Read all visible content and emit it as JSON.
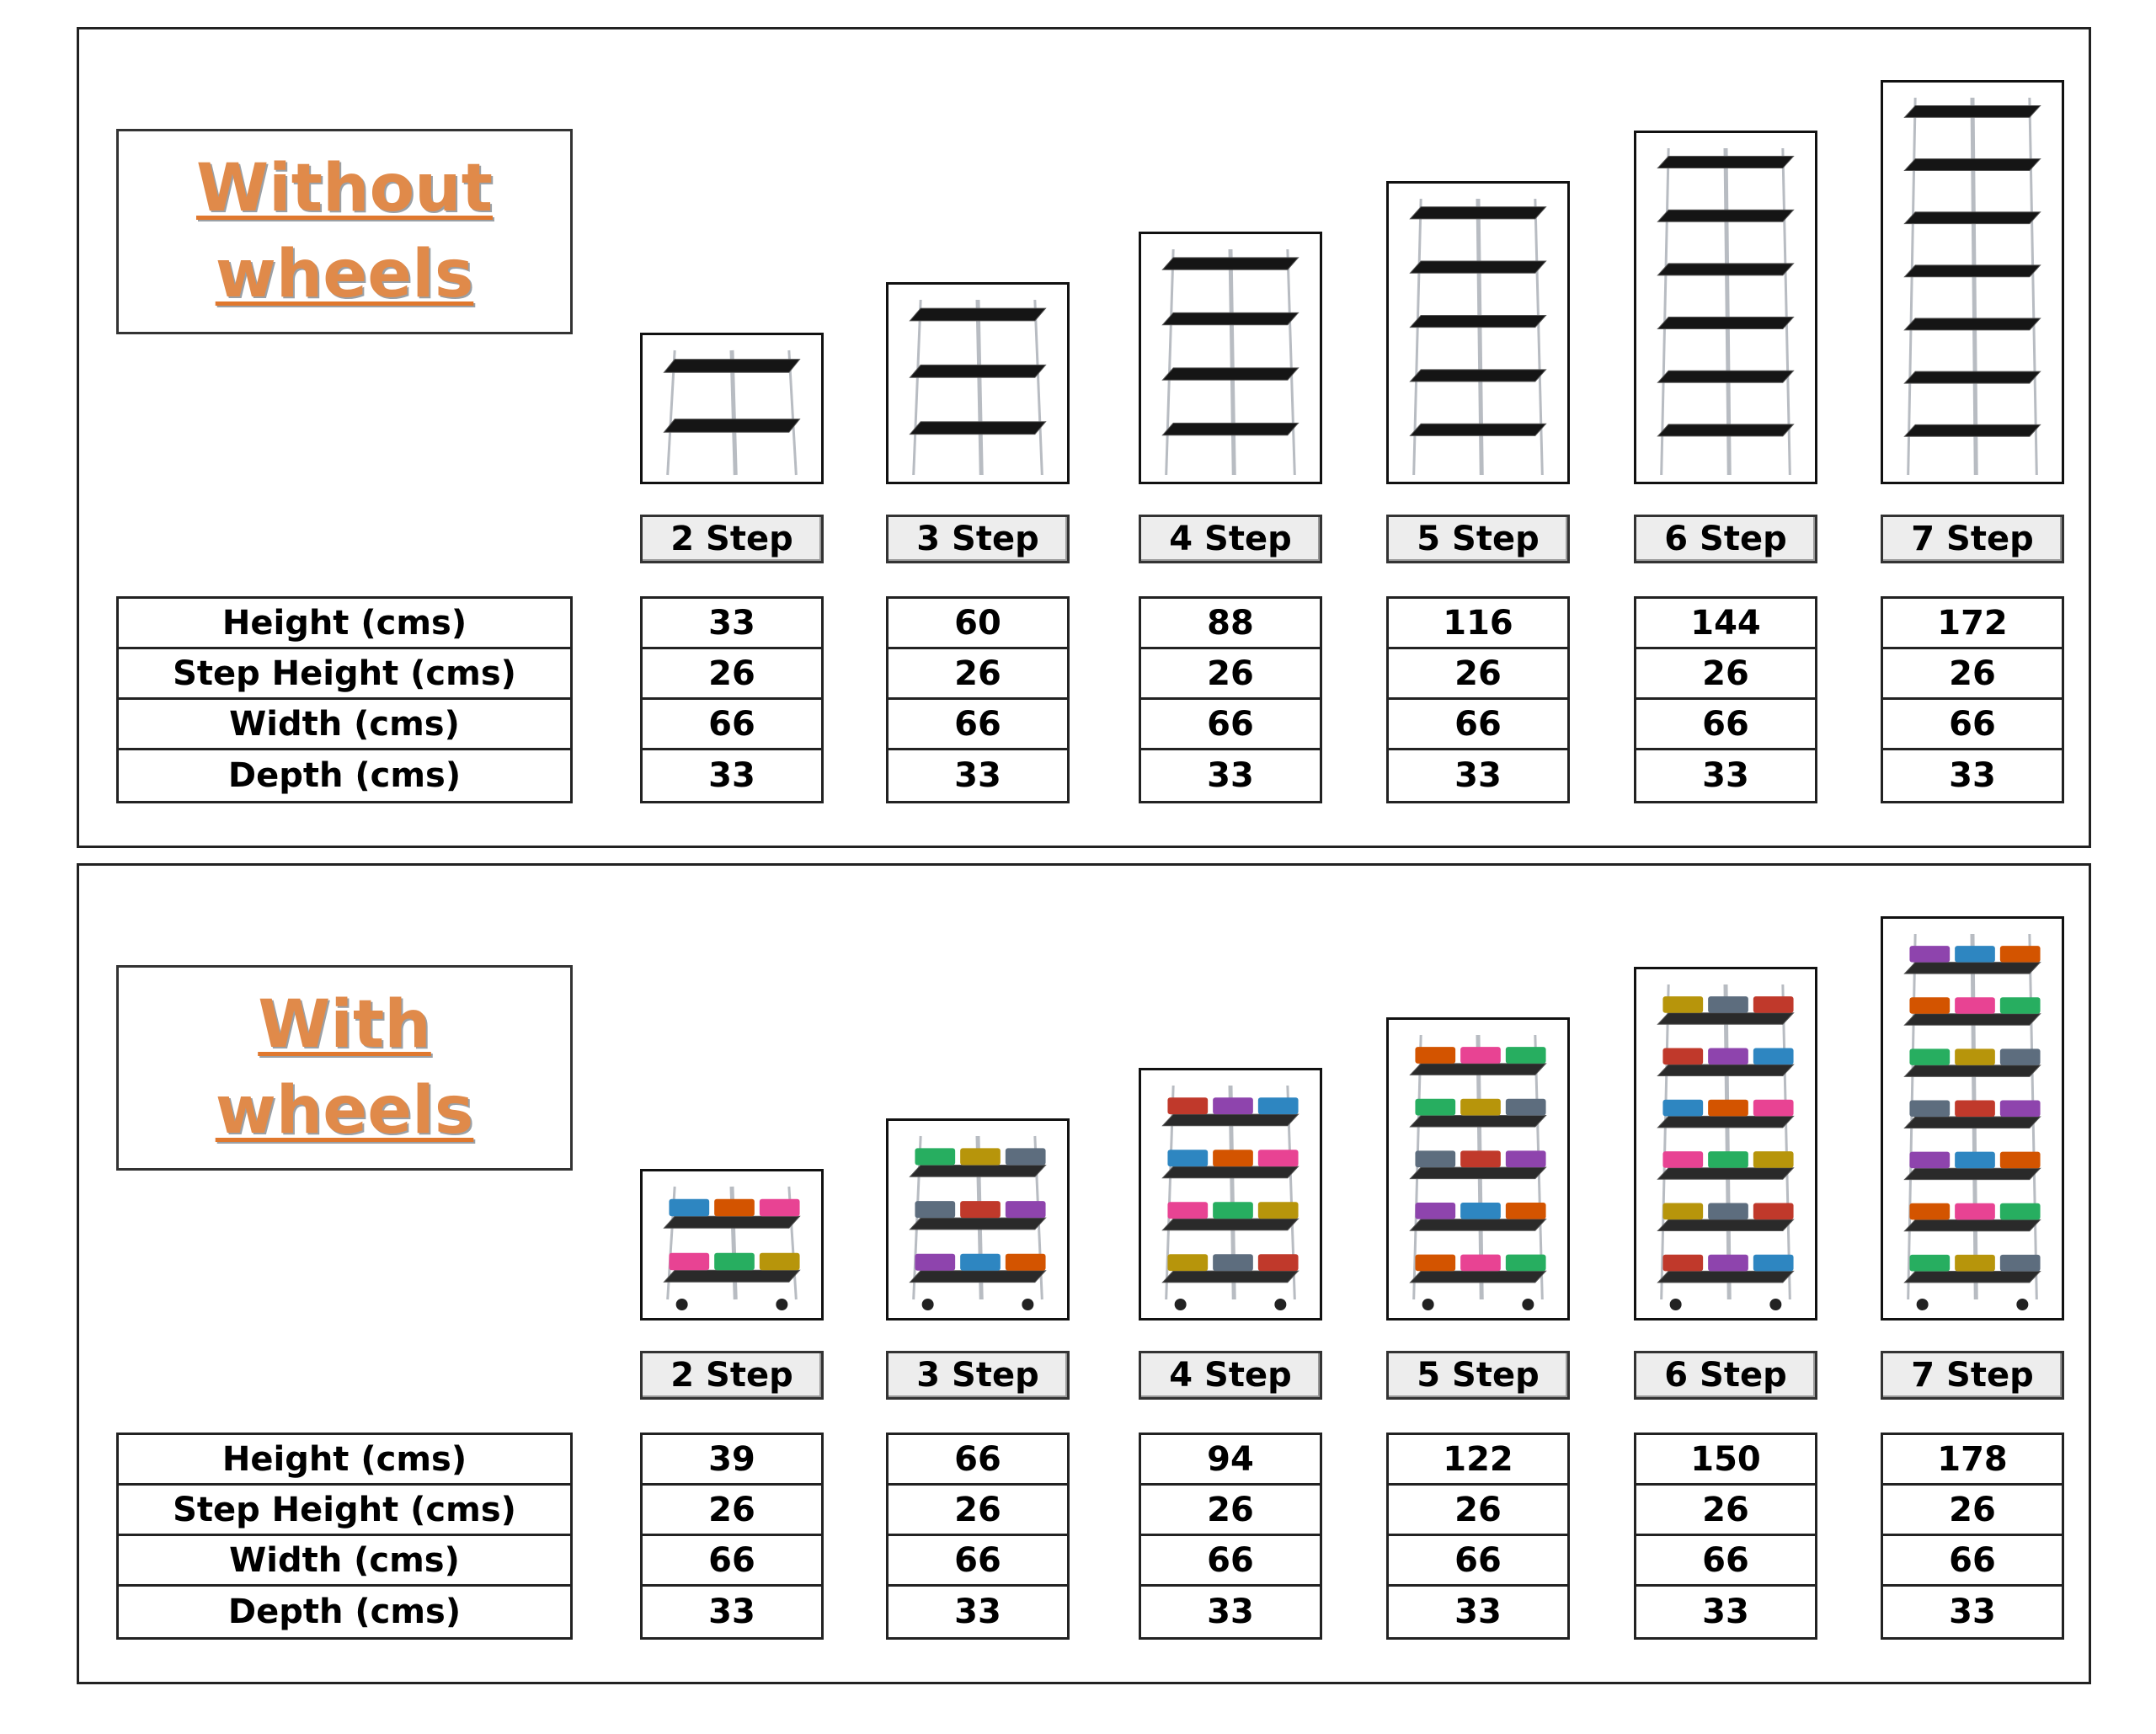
{
  "sections": [
    {
      "title_line1": "Without",
      "title_line2": "wheels",
      "row_labels": [
        "Height (cms)",
        "Step Height (cms)",
        "Width (cms)",
        "Depth (cms)"
      ],
      "items": [
        {
          "step": "2 Step",
          "height": "33",
          "step_height": "26",
          "width": "66",
          "depth": "33"
        },
        {
          "step": "3 Step",
          "height": "60",
          "step_height": "26",
          "width": "66",
          "depth": "33"
        },
        {
          "step": "4 Step",
          "height": "88",
          "step_height": "26",
          "width": "66",
          "depth": "33"
        },
        {
          "step": "5 Step",
          "height": "116",
          "step_height": "26",
          "width": "66",
          "depth": "33"
        },
        {
          "step": "6 Step",
          "height": "144",
          "step_height": "26",
          "width": "66",
          "depth": "33"
        },
        {
          "step": "7 Step",
          "height": "172",
          "step_height": "26",
          "width": "66",
          "depth": "33"
        }
      ]
    },
    {
      "title_line1": "With",
      "title_line2": "wheels",
      "row_labels": [
        "Height (cms)",
        "Step Height (cms)",
        "Width (cms)",
        "Depth (cms)"
      ],
      "items": [
        {
          "step": "2 Step",
          "height": "39",
          "step_height": "26",
          "width": "66",
          "depth": "33"
        },
        {
          "step": "3 Step",
          "height": "66",
          "step_height": "26",
          "width": "66",
          "depth": "33"
        },
        {
          "step": "4 Step",
          "height": "94",
          "step_height": "26",
          "width": "66",
          "depth": "33"
        },
        {
          "step": "5 Step",
          "height": "122",
          "step_height": "26",
          "width": "66",
          "depth": "33"
        },
        {
          "step": "6 Step",
          "height": "150",
          "step_height": "26",
          "width": "66",
          "depth": "33"
        },
        {
          "step": "7 Step",
          "height": "178",
          "step_height": "26",
          "width": "66",
          "depth": "33"
        }
      ]
    }
  ],
  "colors": {
    "title": "#e08a4a",
    "underline": "#e0782e",
    "shelf": "#1a1a1a",
    "pole": "#b8bcc2"
  }
}
